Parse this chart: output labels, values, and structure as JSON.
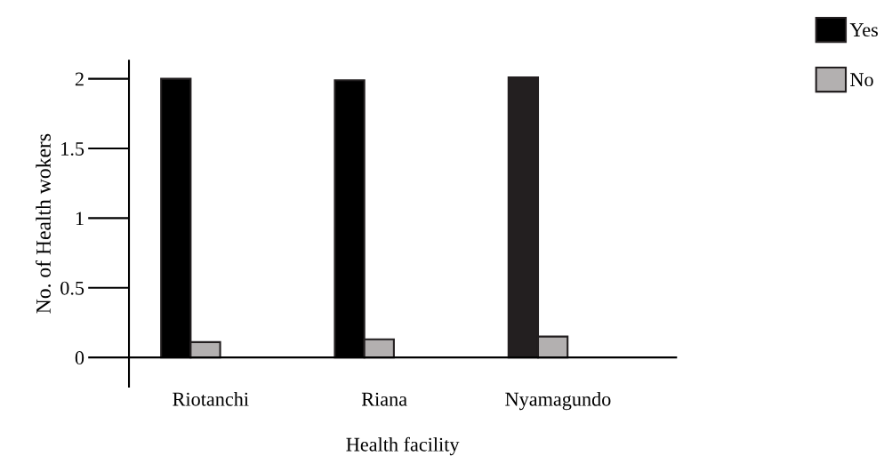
{
  "chart_data": {
    "type": "bar",
    "xlabel": "Health facility",
    "ylabel": "No. of Health wokers",
    "categories": [
      "Riotanchi",
      "Riana",
      "Nyamagundo"
    ],
    "series": [
      {
        "name": "Yes",
        "colors": [
          "#000000",
          "#000000",
          "#231f20"
        ],
        "values": [
          2.0,
          1.99,
          2.01
        ]
      },
      {
        "name": "No",
        "colors": [
          "#b3b0b0",
          "#b3b0b0",
          "#b3b0b0"
        ],
        "values": [
          0.11,
          0.13,
          0.15
        ]
      }
    ],
    "ylim": [
      -0.21,
      2.13
    ],
    "yticks": [
      0,
      0.5,
      1,
      1.5,
      2
    ],
    "grid": false,
    "legend": "top right"
  }
}
